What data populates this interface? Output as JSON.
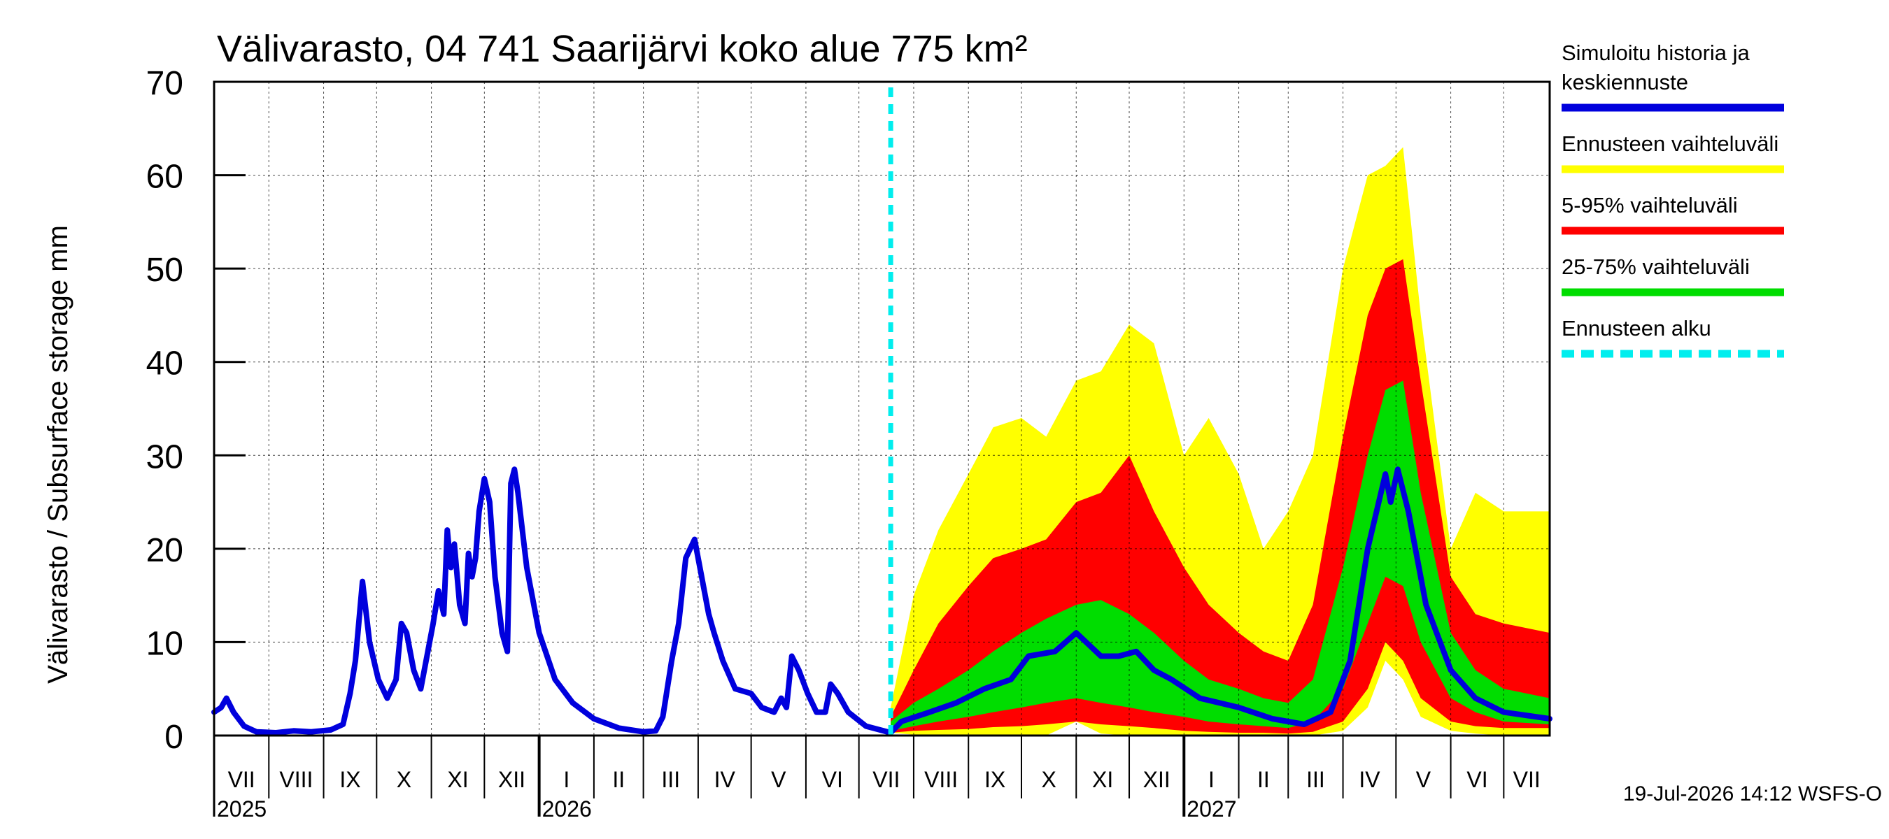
{
  "chart_data": {
    "type": "area",
    "title": "Välivarasto, 04 741 Saarijärvi koko alue 775 km²",
    "ylabel": "Välivarasto / Subsurface storage  mm",
    "ylim": [
      0,
      70
    ],
    "yticks": [
      0,
      10,
      20,
      30,
      40,
      50,
      60,
      70
    ],
    "grid": true,
    "legend_position": "right",
    "colors": {
      "history": "#0000dd",
      "range_full": "#ffff00",
      "range_5_95": "#ff0000",
      "range_25_75": "#00dd00",
      "forecast_start": "#00eeee",
      "grid": "#000000"
    },
    "months": [
      {
        "label": "VII",
        "start": "2025-07-01"
      },
      {
        "label": "VIII",
        "start": "2025-08-01"
      },
      {
        "label": "IX",
        "start": "2025-09-01"
      },
      {
        "label": "X",
        "start": "2025-10-01"
      },
      {
        "label": "XI",
        "start": "2025-11-01"
      },
      {
        "label": "XII",
        "start": "2025-12-01"
      },
      {
        "label": "I",
        "start": "2026-01-01"
      },
      {
        "label": "II",
        "start": "2026-02-01"
      },
      {
        "label": "III",
        "start": "2026-03-01"
      },
      {
        "label": "IV",
        "start": "2026-04-01"
      },
      {
        "label": "V",
        "start": "2026-05-01"
      },
      {
        "label": "VI",
        "start": "2026-06-01"
      },
      {
        "label": "VII",
        "start": "2026-07-01"
      },
      {
        "label": "VIII",
        "start": "2026-08-01"
      },
      {
        "label": "IX",
        "start": "2026-09-01"
      },
      {
        "label": "X",
        "start": "2026-10-01"
      },
      {
        "label": "XI",
        "start": "2026-11-01"
      },
      {
        "label": "XII",
        "start": "2026-12-01"
      },
      {
        "label": "I",
        "start": "2027-01-01"
      },
      {
        "label": "II",
        "start": "2027-02-01"
      },
      {
        "label": "III",
        "start": "2027-03-01"
      },
      {
        "label": "IV",
        "start": "2027-04-01"
      },
      {
        "label": "V",
        "start": "2027-05-01"
      },
      {
        "label": "VI",
        "start": "2027-06-01"
      },
      {
        "label": "VII",
        "start": "2027-07-01"
      }
    ],
    "x_start": "2025-07-01",
    "x_end": "2027-07-27",
    "years": [
      {
        "label": "2025",
        "start": "2025-07-01"
      },
      {
        "label": "2026",
        "start": "2026-01-01"
      },
      {
        "label": "2027",
        "start": "2027-01-01"
      }
    ],
    "forecast_start": "2026-07-19",
    "series": [
      {
        "name": "Simuloitu historia ja keskiennuste",
        "points": [
          [
            "2025-07-01",
            2.5
          ],
          [
            "2025-07-05",
            3.0
          ],
          [
            "2025-07-08",
            4.0
          ],
          [
            "2025-07-12",
            2.5
          ],
          [
            "2025-07-18",
            1.0
          ],
          [
            "2025-07-25",
            0.4
          ],
          [
            "2025-08-05",
            0.3
          ],
          [
            "2025-08-15",
            0.5
          ],
          [
            "2025-08-25",
            0.4
          ],
          [
            "2025-09-05",
            0.6
          ],
          [
            "2025-09-12",
            1.2
          ],
          [
            "2025-09-16",
            4.5
          ],
          [
            "2025-09-19",
            8.0
          ],
          [
            "2025-09-23",
            16.5
          ],
          [
            "2025-09-27",
            10.0
          ],
          [
            "2025-10-02",
            6.0
          ],
          [
            "2025-10-07",
            4.0
          ],
          [
            "2025-10-12",
            6.0
          ],
          [
            "2025-10-15",
            12.0
          ],
          [
            "2025-10-18",
            11.0
          ],
          [
            "2025-10-22",
            7.0
          ],
          [
            "2025-10-26",
            5.0
          ],
          [
            "2025-10-29",
            8.0
          ],
          [
            "2025-11-02",
            12.0
          ],
          [
            "2025-11-05",
            15.5
          ],
          [
            "2025-11-08",
            13.0
          ],
          [
            "2025-11-10",
            22.0
          ],
          [
            "2025-11-12",
            18.0
          ],
          [
            "2025-11-14",
            20.5
          ],
          [
            "2025-11-17",
            14.0
          ],
          [
            "2025-11-20",
            12.0
          ],
          [
            "2025-11-22",
            19.5
          ],
          [
            "2025-11-24",
            17.0
          ],
          [
            "2025-11-26",
            19.0
          ],
          [
            "2025-11-28",
            24.0
          ],
          [
            "2025-12-01",
            27.5
          ],
          [
            "2025-12-04",
            25.0
          ],
          [
            "2025-12-07",
            17.0
          ],
          [
            "2025-12-11",
            11.0
          ],
          [
            "2025-12-14",
            9.0
          ],
          [
            "2025-12-16",
            27.0
          ],
          [
            "2025-12-18",
            28.5
          ],
          [
            "2025-12-20",
            26.0
          ],
          [
            "2025-12-25",
            18.0
          ],
          [
            "2026-01-01",
            11.0
          ],
          [
            "2026-01-10",
            6.0
          ],
          [
            "2026-01-20",
            3.5
          ],
          [
            "2026-02-01",
            1.8
          ],
          [
            "2026-02-15",
            0.8
          ],
          [
            "2026-03-01",
            0.4
          ],
          [
            "2026-03-08",
            0.5
          ],
          [
            "2026-03-12",
            2.0
          ],
          [
            "2026-03-17",
            8.0
          ],
          [
            "2026-03-21",
            12.0
          ],
          [
            "2026-03-25",
            19.0
          ],
          [
            "2026-03-30",
            21.0
          ],
          [
            "2026-04-03",
            17.0
          ],
          [
            "2026-04-07",
            13.0
          ],
          [
            "2026-04-10",
            11.0
          ],
          [
            "2026-04-15",
            8.0
          ],
          [
            "2026-04-22",
            5.0
          ],
          [
            "2026-05-01",
            4.5
          ],
          [
            "2026-05-07",
            3.0
          ],
          [
            "2026-05-14",
            2.5
          ],
          [
            "2026-05-18",
            4.0
          ],
          [
            "2026-05-21",
            3.0
          ],
          [
            "2026-05-24",
            8.5
          ],
          [
            "2026-05-28",
            7.0
          ],
          [
            "2026-06-02",
            4.5
          ],
          [
            "2026-06-07",
            2.5
          ],
          [
            "2026-06-12",
            2.5
          ],
          [
            "2026-06-15",
            5.5
          ],
          [
            "2026-06-19",
            4.5
          ],
          [
            "2026-06-25",
            2.5
          ],
          [
            "2026-07-05",
            1.0
          ],
          [
            "2026-07-19",
            0.3
          ],
          [
            "2026-07-25",
            1.5
          ],
          [
            "2026-08-10",
            2.5
          ],
          [
            "2026-08-25",
            3.5
          ],
          [
            "2026-09-10",
            5.0
          ],
          [
            "2026-09-25",
            6.0
          ],
          [
            "2026-10-05",
            8.5
          ],
          [
            "2026-10-20",
            9.0
          ],
          [
            "2026-11-01",
            11.0
          ],
          [
            "2026-11-15",
            8.5
          ],
          [
            "2026-11-25",
            8.5
          ],
          [
            "2026-12-05",
            9.0
          ],
          [
            "2026-12-15",
            7.0
          ],
          [
            "2026-12-25",
            6.0
          ],
          [
            "2027-01-10",
            4.0
          ],
          [
            "2027-02-01",
            3.0
          ],
          [
            "2027-02-20",
            1.8
          ],
          [
            "2027-03-10",
            1.2
          ],
          [
            "2027-03-25",
            2.5
          ],
          [
            "2027-04-05",
            8.0
          ],
          [
            "2027-04-15",
            20.0
          ],
          [
            "2027-04-25",
            28.0
          ],
          [
            "2027-04-28",
            25.0
          ],
          [
            "2027-05-02",
            28.5
          ],
          [
            "2027-05-08",
            24.0
          ],
          [
            "2027-05-18",
            14.0
          ],
          [
            "2027-06-01",
            7.0
          ],
          [
            "2027-06-15",
            4.0
          ],
          [
            "2027-07-01",
            2.5
          ],
          [
            "2027-07-27",
            1.8
          ]
        ]
      },
      {
        "name": "Ennusteen vaihteluväli",
        "band": [
          [
            "2026-07-19",
            0.3,
            3.0
          ],
          [
            "2026-08-01",
            0.1,
            15.0
          ],
          [
            "2026-08-15",
            0.0,
            22.0
          ],
          [
            "2026-09-01",
            0.0,
            28.0
          ],
          [
            "2026-09-15",
            0.0,
            33.0
          ],
          [
            "2026-10-01",
            0.0,
            34.0
          ],
          [
            "2026-10-15",
            0.0,
            32.0
          ],
          [
            "2026-11-01",
            1.5,
            38.0
          ],
          [
            "2026-11-15",
            0.2,
            39.0
          ],
          [
            "2026-12-01",
            0.0,
            44.0
          ],
          [
            "2026-12-15",
            0.0,
            42.0
          ],
          [
            "2027-01-01",
            0.0,
            30.0
          ],
          [
            "2027-01-15",
            0.0,
            34.0
          ],
          [
            "2027-02-01",
            0.0,
            28.0
          ],
          [
            "2027-02-15",
            0.0,
            20.0
          ],
          [
            "2027-03-01",
            0.0,
            24.0
          ],
          [
            "2027-03-15",
            0.0,
            30.0
          ],
          [
            "2027-04-01",
            0.5,
            50.0
          ],
          [
            "2027-04-15",
            3.0,
            60.0
          ],
          [
            "2027-04-25",
            8.0,
            61.0
          ],
          [
            "2027-05-05",
            6.0,
            63.0
          ],
          [
            "2027-05-15",
            2.0,
            45.0
          ],
          [
            "2027-06-01",
            0.5,
            20.0
          ],
          [
            "2027-06-15",
            0.2,
            26.0
          ],
          [
            "2027-07-01",
            0.0,
            24.0
          ],
          [
            "2027-07-27",
            0.0,
            24.0
          ]
        ]
      },
      {
        "name": "5-95% vaihteluväli",
        "band": [
          [
            "2026-07-19",
            0.3,
            2.0
          ],
          [
            "2026-08-01",
            0.5,
            7.0
          ],
          [
            "2026-08-15",
            0.6,
            12.0
          ],
          [
            "2026-09-01",
            0.7,
            16.0
          ],
          [
            "2026-09-15",
            0.9,
            19.0
          ],
          [
            "2026-10-01",
            1.0,
            20.0
          ],
          [
            "2026-10-15",
            1.2,
            21.0
          ],
          [
            "2026-11-01",
            1.5,
            25.0
          ],
          [
            "2026-11-15",
            1.2,
            26.0
          ],
          [
            "2026-12-01",
            1.0,
            30.0
          ],
          [
            "2026-12-15",
            0.8,
            24.0
          ],
          [
            "2027-01-01",
            0.5,
            18.0
          ],
          [
            "2027-01-15",
            0.4,
            14.0
          ],
          [
            "2027-02-01",
            0.3,
            11.0
          ],
          [
            "2027-02-15",
            0.3,
            9.0
          ],
          [
            "2027-03-01",
            0.2,
            8.0
          ],
          [
            "2027-03-15",
            0.4,
            14.0
          ],
          [
            "2027-04-01",
            1.5,
            32.0
          ],
          [
            "2027-04-15",
            5.0,
            45.0
          ],
          [
            "2027-04-25",
            10.0,
            50.0
          ],
          [
            "2027-05-05",
            8.0,
            51.0
          ],
          [
            "2027-05-15",
            4.0,
            38.0
          ],
          [
            "2027-06-01",
            1.5,
            17.0
          ],
          [
            "2027-06-15",
            1.0,
            13.0
          ],
          [
            "2027-07-01",
            0.8,
            12.0
          ],
          [
            "2027-07-27",
            0.8,
            11.0
          ]
        ]
      },
      {
        "name": "25-75% vaihteluväli",
        "band": [
          [
            "2026-07-19",
            0.5,
            1.5
          ],
          [
            "2026-08-01",
            1.0,
            3.5
          ],
          [
            "2026-08-15",
            1.5,
            5.0
          ],
          [
            "2026-09-01",
            2.0,
            7.0
          ],
          [
            "2026-09-15",
            2.5,
            9.0
          ],
          [
            "2026-10-01",
            3.0,
            11.0
          ],
          [
            "2026-10-15",
            3.5,
            12.5
          ],
          [
            "2026-11-01",
            4.0,
            14.0
          ],
          [
            "2026-11-15",
            3.5,
            14.5
          ],
          [
            "2026-12-01",
            3.0,
            13.0
          ],
          [
            "2026-12-15",
            2.5,
            11.0
          ],
          [
            "2027-01-01",
            2.0,
            8.0
          ],
          [
            "2027-01-15",
            1.5,
            6.0
          ],
          [
            "2027-02-01",
            1.2,
            5.0
          ],
          [
            "2027-02-15",
            1.0,
            4.0
          ],
          [
            "2027-03-01",
            0.8,
            3.5
          ],
          [
            "2027-03-15",
            1.5,
            6.0
          ],
          [
            "2027-04-01",
            5.0,
            18.0
          ],
          [
            "2027-04-15",
            12.0,
            30.0
          ],
          [
            "2027-04-25",
            17.0,
            37.0
          ],
          [
            "2027-05-05",
            16.0,
            38.0
          ],
          [
            "2027-05-15",
            10.0,
            26.0
          ],
          [
            "2027-06-01",
            4.0,
            11.0
          ],
          [
            "2027-06-15",
            2.5,
            7.0
          ],
          [
            "2027-07-01",
            1.5,
            5.0
          ],
          [
            "2027-07-27",
            1.2,
            4.0
          ]
        ]
      }
    ]
  },
  "legend": [
    {
      "label_lines": [
        "Simuloitu historia ja",
        "keskiennuste"
      ],
      "color": "#0000dd",
      "style": "solid"
    },
    {
      "label_lines": [
        "Ennusteen vaihteluväli"
      ],
      "color": "#ffff00",
      "style": "solid"
    },
    {
      "label_lines": [
        "5-95% vaihteluväli"
      ],
      "color": "#ff0000",
      "style": "solid"
    },
    {
      "label_lines": [
        "25-75% vaihteluväli"
      ],
      "color": "#00dd00",
      "style": "solid"
    },
    {
      "label_lines": [
        "Ennusteen alku"
      ],
      "color": "#00eeee",
      "style": "dashed"
    }
  ],
  "footer": "19-Jul-2026 14:12 WSFS-O"
}
